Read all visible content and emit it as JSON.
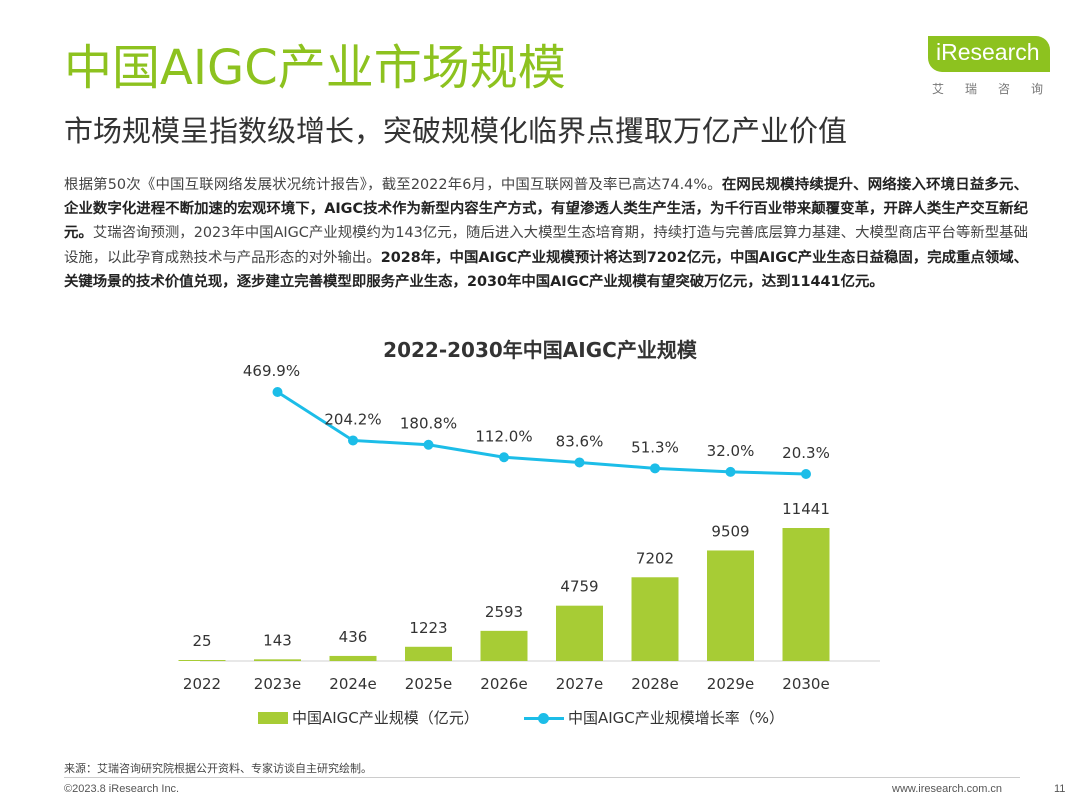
{
  "header": {
    "title": "中国AIGC产业市场规模",
    "subtitle": "市场规模呈指数级增长，突破规模化临界点攫取万亿产业价值"
  },
  "logo": {
    "text": "iResearch",
    "subtext": "艾瑞咨询"
  },
  "body": {
    "p1": "根据第50次《中国互联网络发展状况统计报告》，截至2022年6月，中国互联网普及率已高达74.4%。",
    "p2": "在网民规模持续提升、网络接入环境日益多元、企业数字化进程不断加速的宏观环境下，AIGC技术作为新型内容生产方式，有望渗透人类生产生活，为千行百业带来颠覆变革，开辟人类生产交互新纪元。",
    "p3": "艾瑞咨询预测，2023年中国AIGC产业规模约为143亿元，随后进入大模型生态培育期，持续打造与完善底层算力基建、大模型商店平台等新型基础设施，以此孕育成熟技术与产品形态的对外输出。",
    "p4": "2028年，中国AIGC产业规模预计将达到7202亿元，中国AIGC产业生态日益稳固，完成重点领域、关键场景的技术价值兑现，逐步建立完善模型即服务产业生态，2030年中国AIGC产业规模有望突破万亿元，达到11441亿元。"
  },
  "chart_data": {
    "type": "bar",
    "title": "2022-2030年中国AIGC产业规模",
    "categories": [
      "2022",
      "2023e",
      "2024e",
      "2025e",
      "2026e",
      "2027e",
      "2028e",
      "2029e",
      "2030e"
    ],
    "series": [
      {
        "name": "中国AIGC产业规模（亿元）",
        "type": "bar",
        "values": [
          25,
          143,
          436,
          1223,
          2593,
          4759,
          7202,
          9509,
          11441
        ],
        "labels": [
          "25",
          "143",
          "436",
          "1223",
          "2593",
          "4759",
          "7202",
          "9509",
          "11441"
        ]
      },
      {
        "name": "中国AIGC产业规模增长率（%）",
        "type": "line",
        "values": [
          null,
          469.9,
          204.2,
          180.8,
          112.0,
          83.6,
          51.3,
          32.0,
          20.3
        ],
        "labels": [
          "",
          "469.9%",
          "204.2%",
          "180.8%",
          "112.0%",
          "83.6%",
          "51.3%",
          "32.0%",
          "20.3%"
        ]
      }
    ],
    "legend_position": "bottom",
    "grid": false
  },
  "colors": {
    "accent": "#8dc21f",
    "bar": "#a7cc35",
    "line": "#1cbde8"
  },
  "footer": {
    "source": "来源：艾瑞咨询研究院根据公开资料、专家访谈自主研究绘制。",
    "copyright": "©2023.8 iResearch Inc.",
    "website": "www.iresearch.com.cn",
    "page": "11"
  }
}
